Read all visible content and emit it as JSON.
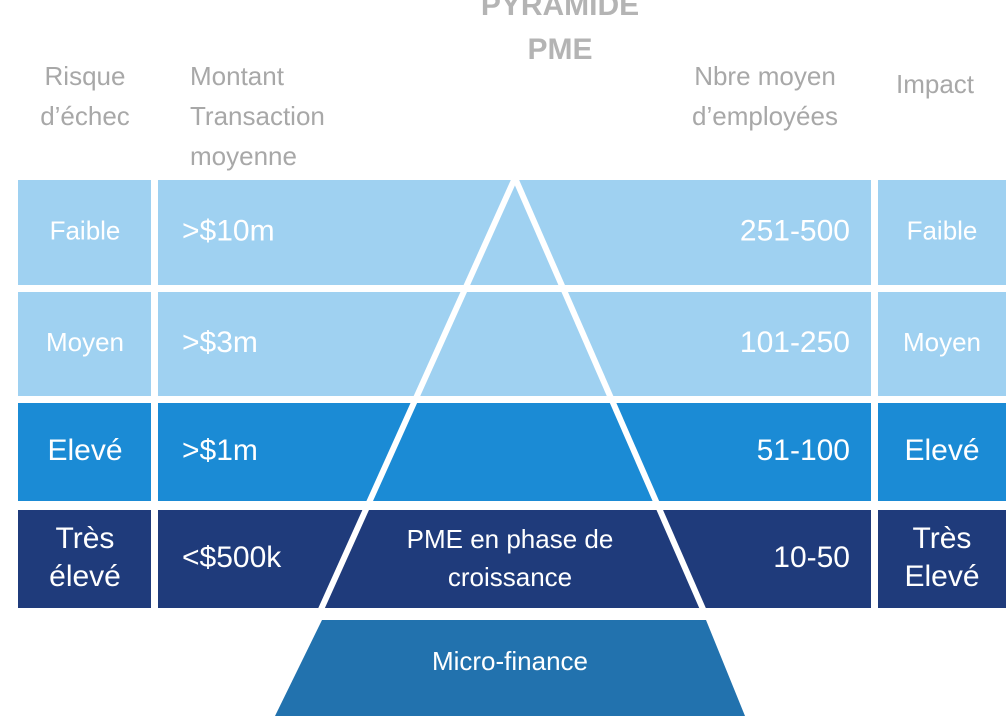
{
  "header": {
    "title": [
      "PYRAMIDE",
      "PME"
    ],
    "risk": [
      "Risque",
      "d’échec"
    ],
    "amount": [
      "Montant",
      "Transaction",
      "moyenne"
    ],
    "employees": [
      "Nbre moyen",
      "d’employées"
    ],
    "impact": [
      "Impact"
    ]
  },
  "rows": [
    {
      "risk": [
        "Faible"
      ],
      "amount": ">$10m",
      "employees": "251-500",
      "impact": [
        "Faible"
      ]
    },
    {
      "risk": [
        "Moyen"
      ],
      "amount": ">$3m",
      "employees": "101-250",
      "impact": [
        "Moyen"
      ]
    },
    {
      "risk": [
        "Elevé"
      ],
      "amount": ">$1m",
      "employees": "51-100",
      "impact": [
        "Elevé"
      ]
    },
    {
      "risk": [
        "Très",
        "élevé"
      ],
      "amount": "<$500k",
      "center": [
        "PME en phase de",
        "croissance"
      ],
      "employees": "10-50",
      "impact": [
        "Très",
        "Elevé"
      ]
    }
  ],
  "base": "Micro-finance"
}
